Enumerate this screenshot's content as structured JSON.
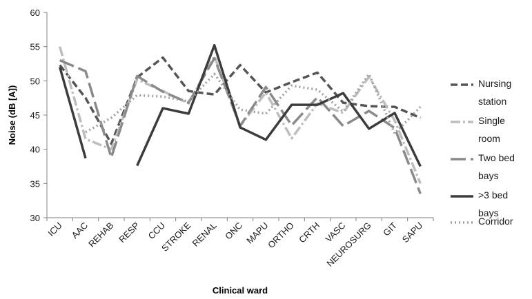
{
  "chart_data": {
    "type": "line",
    "title": "",
    "xlabel": "Clinical ward",
    "ylabel": "Noise (dB [A])",
    "ylim": [
      30,
      60
    ],
    "yticks": [
      30,
      35,
      40,
      45,
      50,
      55,
      60
    ],
    "grid": false,
    "legend_position": "right",
    "categories": [
      "ICU",
      "AAC",
      "REHAB",
      "RESP",
      "CCU",
      "STROKE",
      "RENAL",
      "ONC",
      "MAPU",
      "ORTHO",
      "CRTH",
      "VASC",
      "NEUROSURG",
      "GIT",
      "SAPU"
    ],
    "series": [
      {
        "name": "Nursing station",
        "legend_lines": [
          "Nursing",
          "station"
        ],
        "color": "#555555",
        "dash": "10,5",
        "values": [
          52.3,
          47.5,
          40.8,
          50.5,
          53.4,
          48.5,
          48.0,
          52.3,
          48.3,
          49.8,
          51.2,
          46.8,
          46.3,
          46.2,
          44.6
        ]
      },
      {
        "name": "Single room",
        "legend_lines": [
          "Single",
          "room"
        ],
        "color": "#bdbdbd",
        "dash": "14,4,3,4",
        "values": [
          55.0,
          41.5,
          40.0,
          50.2,
          48.5,
          46.7,
          53.6,
          43.4,
          48.3,
          41.6,
          46.7,
          45.3,
          50.6,
          44.2,
          35.0
        ]
      },
      {
        "name": "Two bed bays",
        "legend_lines": [
          "Two bed",
          "bays"
        ],
        "color": "#8a8a8a",
        "dash": "22,7",
        "values": [
          53.0,
          51.4,
          38.8,
          50.7,
          48.4,
          46.8,
          53.3,
          43.4,
          49.1,
          43.5,
          47.6,
          43.4,
          45.6,
          43.1,
          33.5
        ]
      },
      {
        "name": ">3 bed bays",
        "legend_lines": [
          ">3 bed",
          "bays"
        ],
        "color": "#3c3c3c",
        "dash": "",
        "segments": [
          [
            0,
            1
          ],
          [
            3,
            14
          ]
        ],
        "values": [
          52.0,
          38.7,
          null,
          37.6,
          46.0,
          45.2,
          55.2,
          43.2,
          41.4,
          46.5,
          46.5,
          48.2,
          43.0,
          45.3,
          37.5
        ]
      },
      {
        "name": "Corridor",
        "legend_lines": [
          "Corridor"
        ],
        "color": "#a0a0a0",
        "dash": "2,4",
        "values": [
          null,
          42.5,
          44.6,
          47.9,
          47.7,
          47.0,
          51.0,
          45.8,
          45.2,
          49.3,
          48.7,
          45.5,
          51.0,
          42.3,
          46.2
        ]
      }
    ]
  }
}
